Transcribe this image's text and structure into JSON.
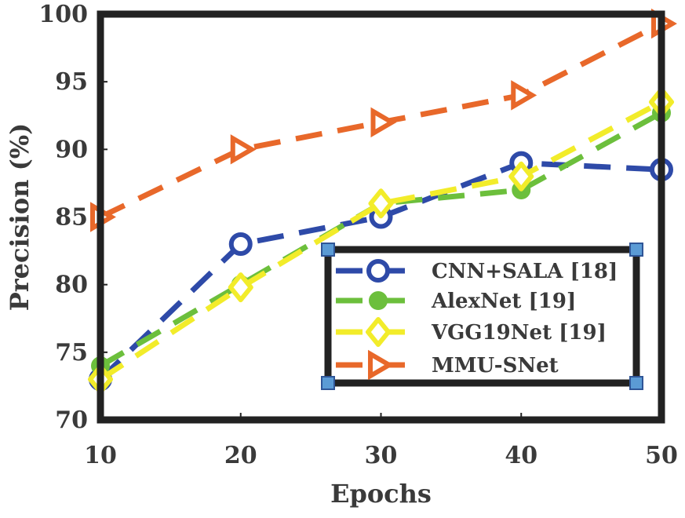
{
  "chart_data": {
    "type": "line",
    "xlabel": "Epochs",
    "ylabel": "Precision (%)",
    "x": [
      10,
      20,
      30,
      40,
      50
    ],
    "xlim": [
      10,
      50
    ],
    "ylim": [
      70,
      100
    ],
    "xticks": [
      "10",
      "20",
      "30",
      "40",
      "50"
    ],
    "yticks": [
      "70",
      "75",
      "80",
      "85",
      "90",
      "95",
      "100"
    ],
    "grid": false,
    "legend_position": "lower-right",
    "series": [
      {
        "name": "CNN+SALA [18]",
        "values": [
          73,
          83,
          85,
          89,
          88.5
        ],
        "color": "#2e4aa8",
        "marker": "circle-open"
      },
      {
        "name": "AlexNet [19]",
        "values": [
          74,
          80,
          86,
          87,
          92.7
        ],
        "color": "#6cbf3c",
        "marker": "circle-filled"
      },
      {
        "name": "VGG19Net [19]",
        "values": [
          73,
          79.8,
          86,
          88,
          93.5
        ],
        "color": "#f2ec2a",
        "marker": "diamond-open"
      },
      {
        "name": "MMU-SNet",
        "values": [
          85,
          90,
          92,
          94,
          99.3
        ],
        "color": "#e8682a",
        "marker": "triangle-right-open"
      }
    ]
  }
}
